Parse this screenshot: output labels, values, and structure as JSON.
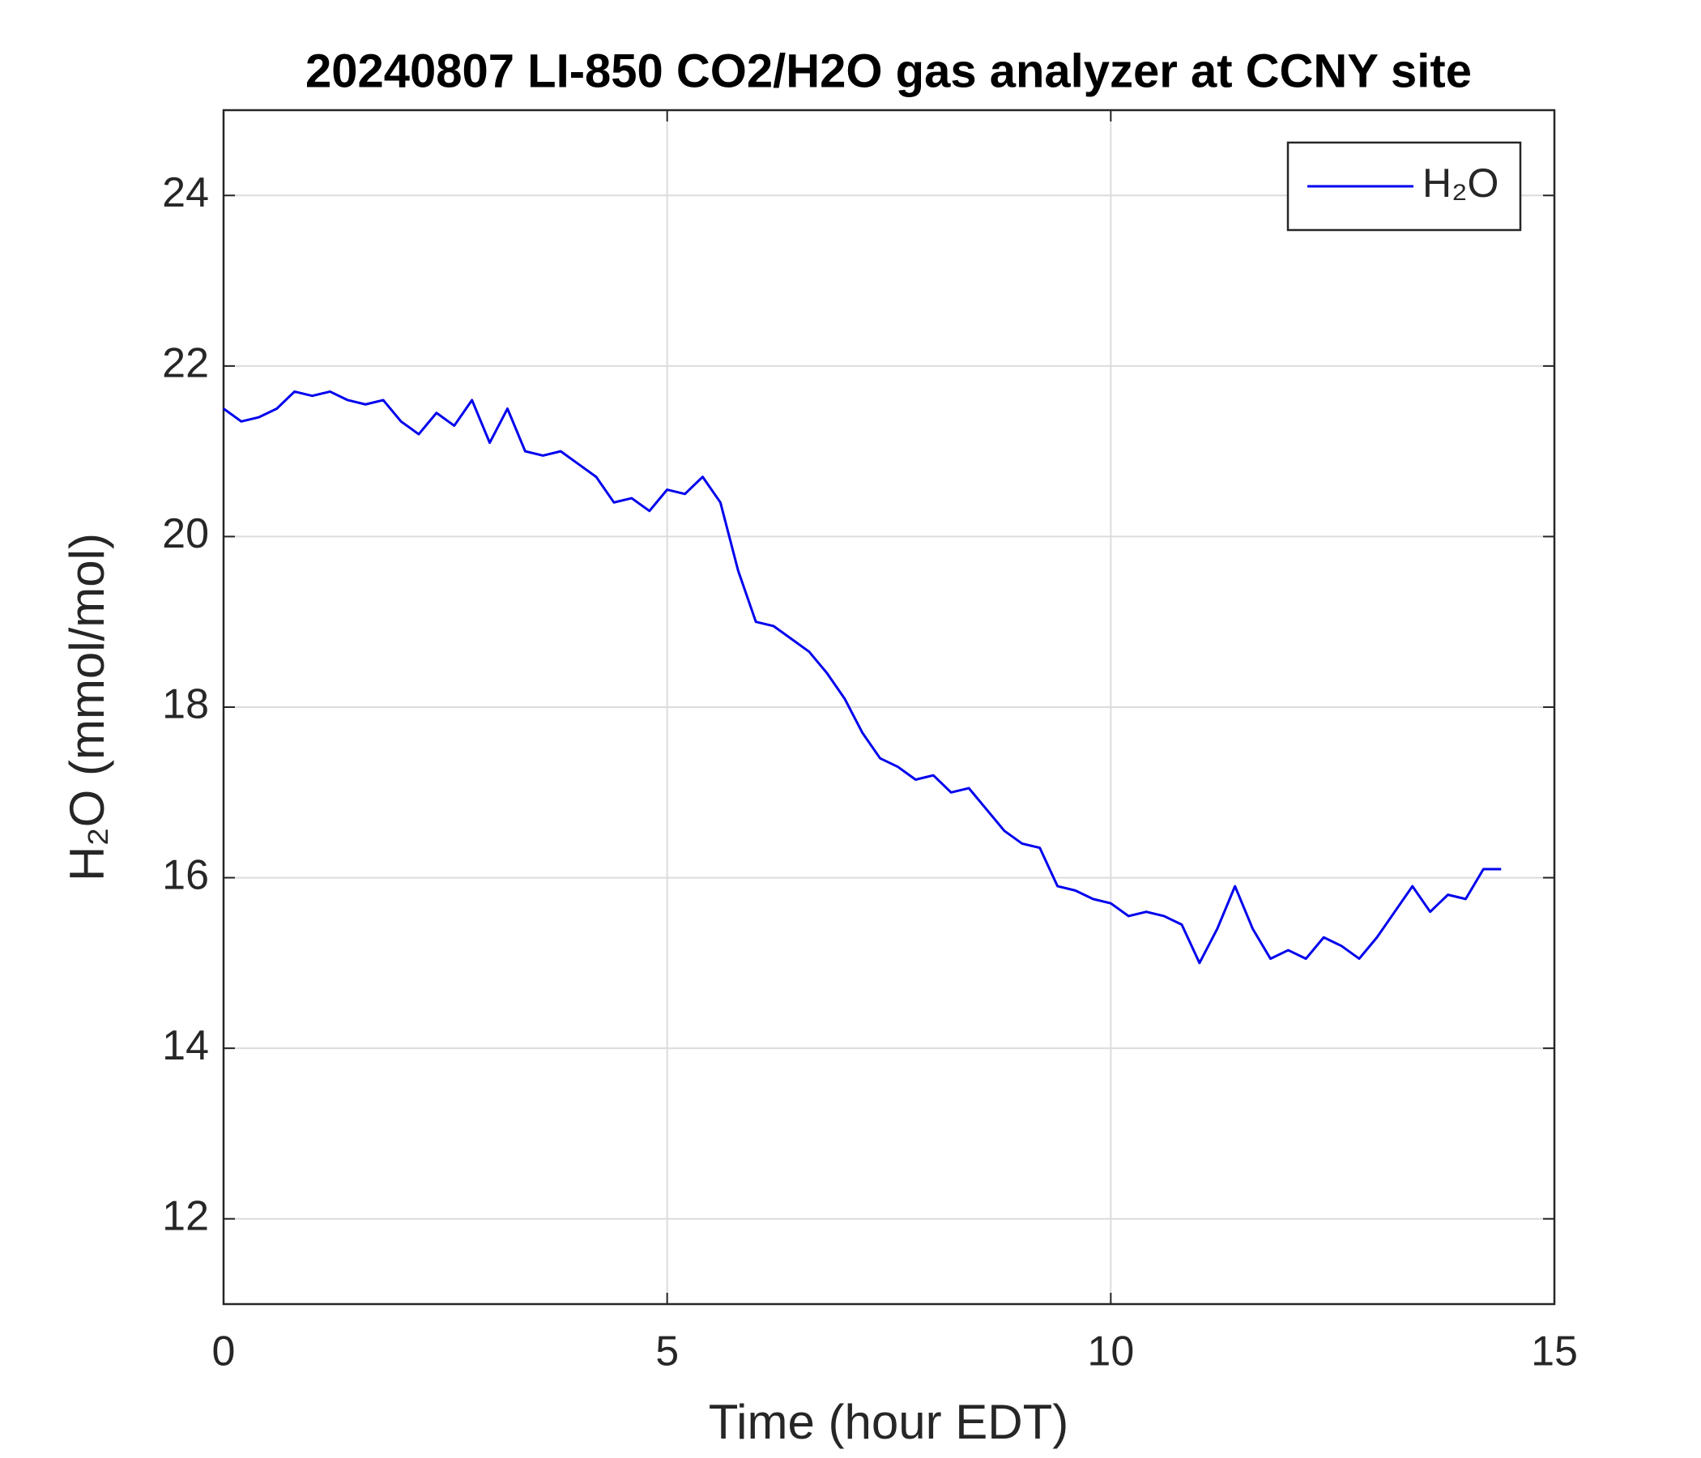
{
  "chart_data": {
    "type": "line",
    "title": "20240807 LI-850 CO2/H2O gas analyzer at CCNY site",
    "x_label": "Time (hour EDT)",
    "y_label": "H₂O (mmol/mol)",
    "x": [
      0,
      0.2,
      0.4,
      0.6,
      0.8,
      1.0,
      1.2,
      1.4,
      1.6,
      1.8,
      2.0,
      2.2,
      2.4,
      2.6,
      2.8,
      3.0,
      3.2,
      3.4,
      3.6,
      3.8,
      4.0,
      4.2,
      4.4,
      4.6,
      4.8,
      5.0,
      5.2,
      5.4,
      5.6,
      5.8,
      6.0,
      6.2,
      6.4,
      6.6,
      6.8,
      7.0,
      7.2,
      7.4,
      7.6,
      7.8,
      8.0,
      8.2,
      8.4,
      8.6,
      8.8,
      9.0,
      9.2,
      9.4,
      9.6,
      9.8,
      10.0,
      10.2,
      10.4,
      10.6,
      10.8,
      11.0,
      11.2,
      11.4,
      11.6,
      11.8,
      12.0,
      12.2,
      12.4,
      12.6,
      12.8,
      13.0,
      13.2,
      13.4,
      13.6,
      13.8,
      14.0,
      14.2,
      14.4
    ],
    "series": [
      {
        "name": "H₂O",
        "color": "#0000ee",
        "values": [
          21.5,
          21.35,
          21.4,
          21.5,
          21.7,
          21.65,
          21.7,
          21.6,
          21.55,
          21.6,
          21.35,
          21.2,
          21.45,
          21.3,
          21.6,
          21.1,
          21.5,
          21.0,
          20.95,
          21.0,
          20.85,
          20.7,
          20.4,
          20.45,
          20.3,
          20.55,
          20.5,
          20.7,
          20.4,
          19.6,
          19.0,
          18.95,
          18.8,
          18.65,
          18.4,
          18.1,
          17.7,
          17.4,
          17.3,
          17.15,
          17.2,
          17.0,
          17.05,
          16.8,
          16.55,
          16.4,
          16.35,
          15.9,
          15.85,
          15.75,
          15.7,
          15.55,
          15.6,
          15.55,
          15.45,
          15.0,
          15.4,
          15.9,
          15.4,
          15.05,
          15.15,
          15.05,
          15.3,
          15.2,
          15.05,
          15.3,
          15.6,
          15.9,
          15.6,
          15.8,
          15.75,
          16.1,
          16.1
        ]
      }
    ],
    "xlim": [
      0,
      15
    ],
    "xticks": [
      0,
      5,
      10,
      15
    ],
    "ylim": [
      11,
      25
    ],
    "yticks": [
      12,
      14,
      16,
      18,
      20,
      22,
      24
    ],
    "grid": true,
    "legend": "upper right"
  }
}
